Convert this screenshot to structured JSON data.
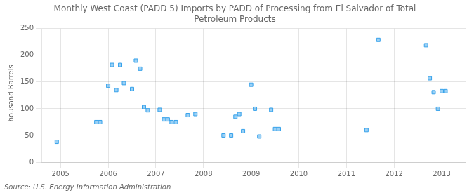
{
  "chart_data": {
    "type": "scatter",
    "title": "Monthly West Coast (PADD 5) Imports by PADD of Processing from El Salvador of Total\nPetroleum Products",
    "ylabel": "Thousand Barrels",
    "annotation": "Source: U.S. Energy Information Administration",
    "marker": "square",
    "grid": true,
    "xlim": [
      2004.6,
      2013.5
    ],
    "ylim": [
      0,
      250
    ],
    "xticks": [
      2005,
      2006,
      2007,
      2008,
      2009,
      2010,
      2011,
      2012,
      2013
    ],
    "yticks": [
      0,
      50,
      100,
      150,
      200,
      250
    ],
    "x": [
      2004.92,
      2005.75,
      2005.83,
      2006.0,
      2006.08,
      2006.17,
      2006.25,
      2006.33,
      2006.5,
      2006.58,
      2006.67,
      2006.75,
      2006.83,
      2007.08,
      2007.17,
      2007.25,
      2007.33,
      2007.42,
      2007.67,
      2007.83,
      2008.42,
      2008.58,
      2008.67,
      2008.75,
      2008.83,
      2009.0,
      2009.08,
      2009.17,
      2009.42,
      2009.5,
      2009.58,
      2011.42,
      2011.67,
      2012.67,
      2012.75,
      2012.83,
      2012.92,
      2013.0,
      2013.08
    ],
    "values": [
      38,
      75,
      75,
      143,
      182,
      135,
      182,
      148,
      137,
      190,
      175,
      103,
      97,
      98,
      80,
      80,
      75,
      75,
      88,
      90,
      50,
      50,
      85,
      90,
      58,
      145,
      100,
      48,
      98,
      62,
      62,
      60,
      229,
      219,
      157,
      131,
      100,
      133,
      133
    ]
  }
}
